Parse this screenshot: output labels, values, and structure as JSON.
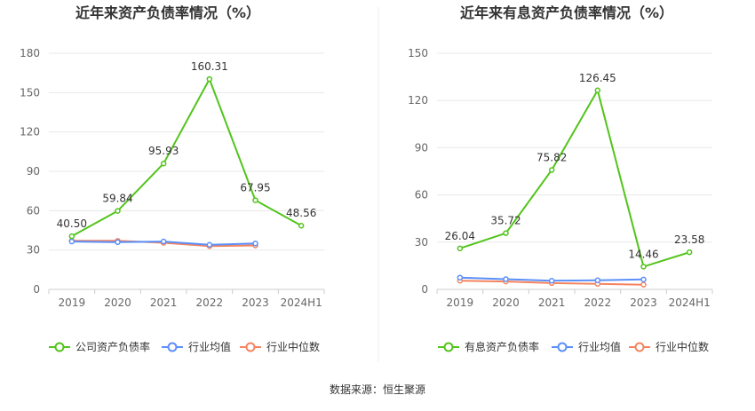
{
  "source": "数据来源：恒生聚源",
  "chart_data": [
    {
      "type": "line",
      "title": "近年来资产负债率情况（%）",
      "categories": [
        "2019",
        "2020",
        "2021",
        "2022",
        "2023",
        "2024H1"
      ],
      "yticks": [
        "0",
        "30",
        "60",
        "90",
        "120",
        "150",
        "180"
      ],
      "ylim": [
        0,
        180
      ],
      "grid": true,
      "legend_position": "bottom",
      "series": [
        {
          "name": "公司资产负债率",
          "color": "#52c41a",
          "values": [
            40.5,
            59.84,
            95.93,
            160.31,
            67.95,
            48.56
          ],
          "labels": [
            "40.50",
            "59.84",
            "95.93",
            "160.31",
            "67.95",
            "48.56"
          ]
        },
        {
          "name": "行业均值",
          "color": "#5b8ff9",
          "values": [
            36.5,
            36.0,
            36.5,
            34.0,
            35.0,
            null
          ]
        },
        {
          "name": "行业中位数",
          "color": "#f4845f",
          "values": [
            37.0,
            37.0,
            35.5,
            33.0,
            33.5,
            null
          ]
        }
      ]
    },
    {
      "type": "line",
      "title": "近年来有息资产负债率情况（%）",
      "categories": [
        "2019",
        "2020",
        "2021",
        "2022",
        "2023",
        "2024H1"
      ],
      "yticks": [
        "0",
        "30",
        "60",
        "90",
        "120",
        "150"
      ],
      "ylim": [
        0,
        150
      ],
      "grid": true,
      "legend_position": "bottom",
      "series": [
        {
          "name": "有息资产负债率",
          "color": "#52c41a",
          "values": [
            26.04,
            35.72,
            75.82,
            126.45,
            14.46,
            23.58
          ],
          "labels": [
            "26.04",
            "35.72",
            "75.82",
            "126.45",
            "14.46",
            "23.58"
          ]
        },
        {
          "name": "行业均值",
          "color": "#5b8ff9",
          "values": [
            7.5,
            6.5,
            5.5,
            5.8,
            6.3,
            null
          ]
        },
        {
          "name": "行业中位数",
          "color": "#f4845f",
          "values": [
            5.5,
            5.0,
            4.0,
            3.5,
            3.0,
            null
          ]
        }
      ]
    }
  ]
}
